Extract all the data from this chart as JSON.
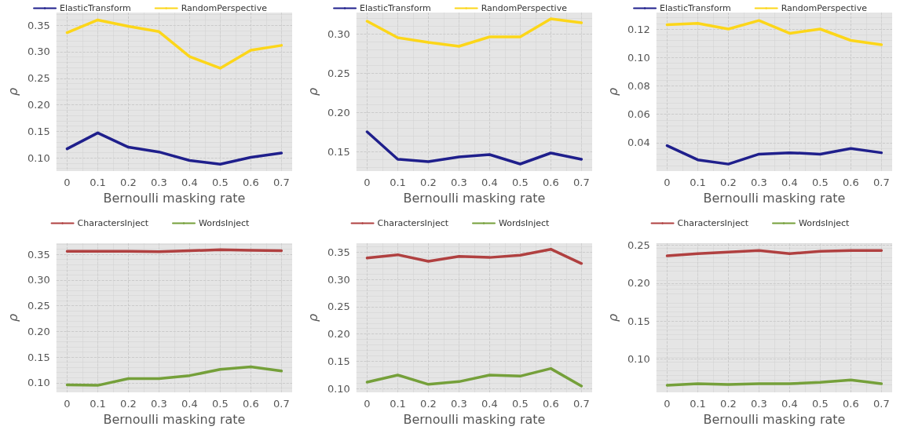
{
  "chart_data": [
    {
      "type": "line",
      "xlabel": "Bernoulli masking rate",
      "ylabel": "ρ",
      "x": [
        0,
        0.1,
        0.2,
        0.3,
        0.4,
        0.5,
        0.6,
        0.7
      ],
      "xlim": [
        -0.035,
        0.735
      ],
      "xticks": [
        0,
        0.1,
        0.2,
        0.3,
        0.4,
        0.5,
        0.6,
        0.7
      ],
      "ylim": [
        0.075,
        0.374
      ],
      "yticks": [
        {
          "value": 0.1,
          "label": "0.10"
        },
        {
          "value": 0.15,
          "label": "0.15"
        },
        {
          "value": 0.2,
          "label": "0.20"
        },
        {
          "value": 0.25,
          "label": "0.25"
        },
        {
          "value": 0.3,
          "label": "0.30"
        },
        {
          "value": 0.35,
          "label": "0.35"
        }
      ],
      "grid": true,
      "legend": "top",
      "marker": "none",
      "line_style": "solid",
      "series": [
        {
          "name": "ElasticTransform",
          "color": "#1f1f8c",
          "values": [
            0.117,
            0.147,
            0.12,
            0.111,
            0.095,
            0.088,
            0.101,
            0.109
          ]
        },
        {
          "name": "RandomPerspective",
          "color": "#fcd619",
          "values": [
            0.336,
            0.36,
            0.348,
            0.338,
            0.291,
            0.269,
            0.303,
            0.312
          ]
        }
      ]
    },
    {
      "type": "line",
      "xlabel": "Bernoulli masking rate",
      "ylabel": "ρ",
      "x": [
        0,
        0.1,
        0.2,
        0.3,
        0.4,
        0.5,
        0.6,
        0.7
      ],
      "xlim": [
        -0.035,
        0.735
      ],
      "xticks": [
        0,
        0.1,
        0.2,
        0.3,
        0.4,
        0.5,
        0.6,
        0.7
      ],
      "ylim": [
        0.125,
        0.327
      ],
      "yticks": [
        {
          "value": 0.15,
          "label": "0.15"
        },
        {
          "value": 0.2,
          "label": "0.20"
        },
        {
          "value": 0.25,
          "label": "0.25"
        },
        {
          "value": 0.3,
          "label": "0.30"
        }
      ],
      "grid": true,
      "legend": "top",
      "marker": "none",
      "line_style": "solid",
      "series": [
        {
          "name": "ElasticTransform",
          "color": "#1f1f8c",
          "values": [
            0.175,
            0.14,
            0.137,
            0.143,
            0.146,
            0.134,
            0.148,
            0.14
          ]
        },
        {
          "name": "RandomPerspective",
          "color": "#fcd619",
          "values": [
            0.316,
            0.295,
            0.289,
            0.284,
            0.296,
            0.296,
            0.319,
            0.314
          ]
        }
      ]
    },
    {
      "type": "line",
      "xlabel": "Bernoulli masking rate",
      "ylabel": "ρ",
      "x": [
        0,
        0.1,
        0.2,
        0.3,
        0.4,
        0.5,
        0.6,
        0.7
      ],
      "xlim": [
        -0.035,
        0.735
      ],
      "xticks": [
        0,
        0.1,
        0.2,
        0.3,
        0.4,
        0.5,
        0.6,
        0.7
      ],
      "ylim": [
        0.0201,
        0.1316
      ],
      "yticks": [
        {
          "value": 0.04,
          "label": "0.04"
        },
        {
          "value": 0.06,
          "label": "0.06"
        },
        {
          "value": 0.08,
          "label": "0.08"
        },
        {
          "value": 0.1,
          "label": "0.10"
        },
        {
          "value": 0.12,
          "label": "0.12"
        }
      ],
      "grid": true,
      "legend": "top",
      "marker": "none",
      "line_style": "solid",
      "series": [
        {
          "name": "ElasticTransform",
          "color": "#1f1f8c",
          "values": [
            0.038,
            0.028,
            0.025,
            0.032,
            0.033,
            0.032,
            0.036,
            0.033
          ]
        },
        {
          "name": "RandomPerspective",
          "color": "#fcd619",
          "values": [
            0.123,
            0.124,
            0.12,
            0.126,
            0.117,
            0.12,
            0.112,
            0.109
          ]
        }
      ]
    },
    {
      "type": "line",
      "xlabel": "Bernoulli masking rate",
      "ylabel": "ρ",
      "x": [
        0,
        0.1,
        0.2,
        0.3,
        0.4,
        0.5,
        0.6,
        0.7
      ],
      "xlim": [
        -0.035,
        0.735
      ],
      "xticks": [
        0,
        0.1,
        0.2,
        0.3,
        0.4,
        0.5,
        0.6,
        0.7
      ],
      "ylim": [
        0.0814,
        0.3716
      ],
      "yticks": [
        {
          "value": 0.1,
          "label": "0.10"
        },
        {
          "value": 0.15,
          "label": "0.15"
        },
        {
          "value": 0.2,
          "label": "0.20"
        },
        {
          "value": 0.25,
          "label": "0.25"
        },
        {
          "value": 0.3,
          "label": "0.30"
        },
        {
          "value": 0.35,
          "label": "0.35"
        }
      ],
      "grid": true,
      "legend": "top",
      "marker": "none",
      "line_style": "solid",
      "series": [
        {
          "name": "CharactersInject",
          "color": "#b04040",
          "values": [
            0.356,
            0.356,
            0.356,
            0.355,
            0.357,
            0.359,
            0.358,
            0.357
          ]
        },
        {
          "name": "WordsInject",
          "color": "#75a03a",
          "values": [
            0.096,
            0.095,
            0.108,
            0.108,
            0.114,
            0.126,
            0.131,
            0.123
          ]
        }
      ]
    },
    {
      "type": "line",
      "xlabel": "Bernoulli masking rate",
      "ylabel": "ρ",
      "x": [
        0,
        0.1,
        0.2,
        0.3,
        0.4,
        0.5,
        0.6,
        0.7
      ],
      "xlim": [
        -0.035,
        0.735
      ],
      "xticks": [
        0,
        0.1,
        0.2,
        0.3,
        0.4,
        0.5,
        0.6,
        0.7
      ],
      "ylim": [
        0.0934,
        0.366
      ],
      "yticks": [
        {
          "value": 0.1,
          "label": "0.10"
        },
        {
          "value": 0.15,
          "label": "0.15"
        },
        {
          "value": 0.2,
          "label": "0.20"
        },
        {
          "value": 0.25,
          "label": "0.25"
        },
        {
          "value": 0.3,
          "label": "0.30"
        },
        {
          "value": 0.35,
          "label": "0.35"
        }
      ],
      "grid": true,
      "legend": "top",
      "marker": "none",
      "line_style": "solid",
      "series": [
        {
          "name": "CharactersInject",
          "color": "#b04040",
          "values": [
            0.339,
            0.345,
            0.333,
            0.342,
            0.34,
            0.344,
            0.355,
            0.329
          ]
        },
        {
          "name": "WordsInject",
          "color": "#75a03a",
          "values": [
            0.112,
            0.125,
            0.108,
            0.113,
            0.125,
            0.123,
            0.137,
            0.105
          ]
        }
      ]
    },
    {
      "type": "line",
      "xlabel": "Bernoulli masking rate",
      "ylabel": "ρ",
      "x": [
        0,
        0.1,
        0.2,
        0.3,
        0.4,
        0.5,
        0.6,
        0.7
      ],
      "xlim": [
        -0.035,
        0.735
      ],
      "xticks": [
        0,
        0.1,
        0.2,
        0.3,
        0.4,
        0.5,
        0.6,
        0.7
      ],
      "ylim": [
        0.0557,
        0.2527
      ],
      "yticks": [
        {
          "value": 0.1,
          "label": "0.10"
        },
        {
          "value": 0.15,
          "label": "0.15"
        },
        {
          "value": 0.2,
          "label": "0.20"
        },
        {
          "value": 0.25,
          "label": "0.25"
        }
      ],
      "grid": true,
      "legend": "top",
      "marker": "none",
      "line_style": "solid",
      "series": [
        {
          "name": "CharactersInject",
          "color": "#b04040",
          "values": [
            0.236,
            0.239,
            0.241,
            0.243,
            0.239,
            0.242,
            0.243,
            0.243
          ]
        },
        {
          "name": "WordsInject",
          "color": "#75a03a",
          "values": [
            0.065,
            0.067,
            0.066,
            0.067,
            0.067,
            0.069,
            0.072,
            0.067
          ]
        }
      ]
    }
  ]
}
